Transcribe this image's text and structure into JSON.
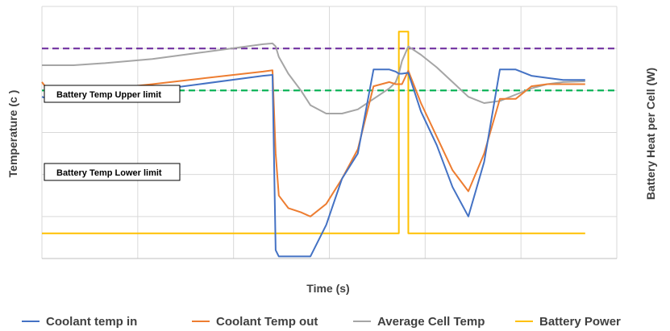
{
  "chart_data": {
    "type": "line",
    "xlabel": "Time (s)",
    "ylabel": "Temperature (c )",
    "y2label": "Battery Heat per Cell (W)",
    "grid": true,
    "legend_position": "bottom",
    "x": [
      0,
      2,
      5,
      10,
      20,
      35,
      50,
      70,
      73,
      74,
      75,
      78,
      82,
      85,
      90,
      95,
      100,
      105,
      110,
      112,
      113,
      114,
      116,
      120,
      125,
      130,
      135,
      140,
      145,
      150,
      155,
      160,
      165,
      172
    ],
    "series": [
      {
        "name": "Coolant temp in",
        "color": "#4472C4",
        "values": [
          48.5,
          48,
          48,
          48.2,
          48.8,
          50,
          51.5,
          53.5,
          53.7,
          12,
          10.5,
          10.5,
          10.5,
          10.5,
          18,
          29,
          35,
          55,
          55,
          54.5,
          54,
          54,
          54.2,
          45,
          37,
          27,
          20,
          33,
          55,
          55,
          53.5,
          53,
          52.5,
          52.5
        ]
      },
      {
        "name": "Coolant Temp out",
        "color": "#ED7D31",
        "values": [
          52,
          50,
          49.5,
          49.7,
          50.3,
          51.5,
          52.8,
          54.5,
          54.8,
          35,
          25,
          22,
          21,
          20,
          23,
          29,
          36,
          51,
          52,
          51.5,
          51.5,
          51.5,
          54.7,
          47,
          39,
          31,
          26,
          35,
          48,
          48,
          51,
          51.5,
          51.5,
          51.5
        ]
      },
      {
        "name": "Average Cell Temp",
        "color": "#A5A5A5",
        "values": [
          56,
          56,
          56,
          56,
          56.5,
          57.5,
          59,
          61,
          61.2,
          60.5,
          58,
          54,
          50,
          46.5,
          44.5,
          44.5,
          45.5,
          48,
          50.5,
          52,
          54,
          57,
          60.5,
          58.5,
          55.5,
          52,
          48.5,
          47,
          47.5,
          49,
          50.5,
          51.5,
          52,
          52.2
        ]
      },
      {
        "name": "Battery Power",
        "color": "#FFC000",
        "axis": "secondary",
        "values": [
          1,
          1,
          1,
          1,
          1,
          1,
          1,
          1,
          1,
          1,
          1,
          1,
          1,
          1,
          1,
          1,
          1,
          1,
          1,
          1,
          9,
          9,
          1,
          1,
          1,
          1,
          1,
          1,
          1,
          1,
          1,
          1,
          1,
          1
        ]
      }
    ],
    "reference_lines": [
      {
        "label": "Battery Temp Upper limit",
        "value": 60,
        "color": "#7030A0",
        "style": "dashed"
      },
      {
        "label": "Battery Temp Lower limit",
        "value": 50,
        "color": "#00B050",
        "style": "dashed"
      }
    ]
  }
}
